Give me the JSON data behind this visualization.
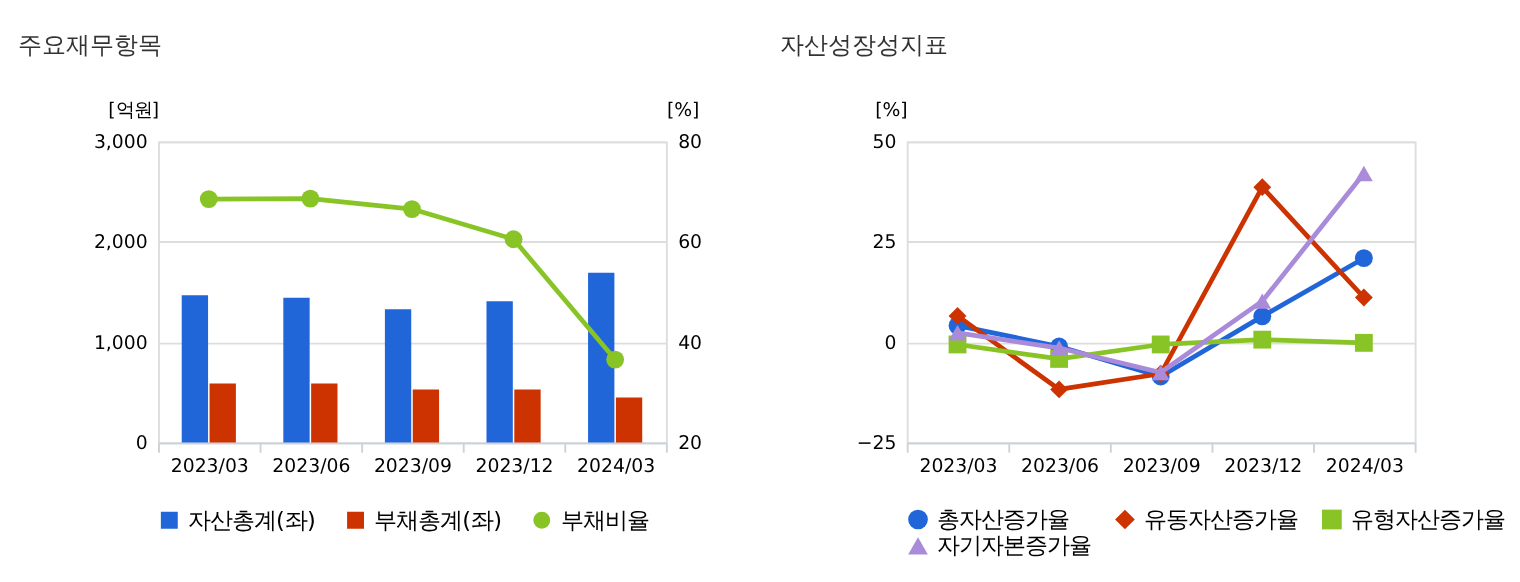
{
  "chart_data": [
    {
      "type": "bar",
      "title": "주요재무항목",
      "categories": [
        "2023/03",
        "2023/06",
        "2023/09",
        "2023/12",
        "2024/03"
      ],
      "ylabel": "[억원]",
      "y2label": "[%]",
      "ylim": [
        0,
        3000
      ],
      "yticks": [
        0,
        {
          "value": 1000,
          "label": "1,000"
        },
        {
          "value": 2000,
          "label": "2,000"
        },
        {
          "value": 3000,
          "label": "3,000"
        }
      ],
      "y2lim": [
        20,
        80
      ],
      "y2ticks": [
        20,
        40,
        60,
        80
      ],
      "grid": "y",
      "legend": "bottom",
      "series": [
        {
          "name": "자산총계(좌)",
          "color": "#2166d9",
          "values": [
            1467,
            1442,
            1327,
            1406,
            1691
          ]
        },
        {
          "name": "부채총계(좌)",
          "color": "#cc3300",
          "values": [
            588,
            588,
            527,
            527,
            448
          ]
        },
        {
          "name": "부채비율",
          "type": "line",
          "axis": "y2",
          "marker": "circle",
          "color": "#88c425",
          "values": [
            68.5,
            68.6,
            66.5,
            60.5,
            36.5
          ]
        }
      ]
    },
    {
      "type": "line",
      "title": "자산성장성지표",
      "categories": [
        "2023/03",
        "2023/06",
        "2023/09",
        "2023/12",
        "2024/03"
      ],
      "ylabel": "[%]",
      "ylim": [
        -25,
        50
      ],
      "yticks": [
        -25,
        0,
        25,
        50
      ],
      "grid": "y",
      "legend": "bottom",
      "series": [
        {
          "name": "총자산증가율",
          "marker": "circle",
          "color": "#2166d9",
          "values": [
            4.1,
            -1.1,
            -8.6,
            6.4,
            20.9
          ]
        },
        {
          "name": "유동자산증가율",
          "marker": "diamond",
          "color": "#cc3300",
          "values": [
            6.5,
            -11.8,
            -7.9,
            38.6,
            11.1
          ]
        },
        {
          "name": "유형자산증가율",
          "marker": "square",
          "color": "#88c425",
          "values": [
            -0.6,
            -4.2,
            -0.6,
            0.6,
            -0.2
          ]
        },
        {
          "name": "자기자본증가율",
          "marker": "triangle",
          "color": "#a98bd9",
          "values": [
            2.3,
            -1.5,
            -7.6,
            10.2,
            42.0
          ]
        }
      ]
    }
  ]
}
